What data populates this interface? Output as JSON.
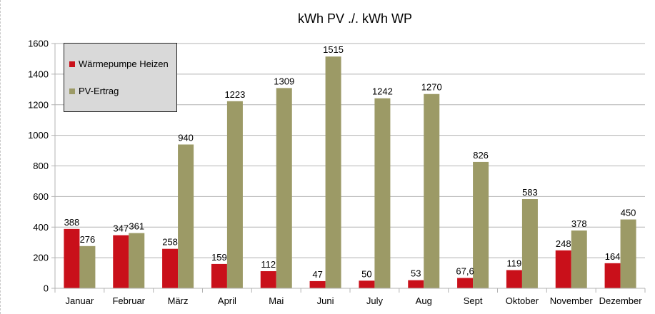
{
  "chart_data": {
    "type": "bar",
    "title": "kWh PV ./. kWh WP",
    "xlabel": "",
    "ylabel": "",
    "ylim": [
      0,
      1600
    ],
    "yticks": [
      0,
      200,
      400,
      600,
      800,
      1000,
      1200,
      1400,
      1600
    ],
    "grid": true,
    "legend_position": "top-left",
    "categories": [
      "Januar",
      "Februar",
      "März",
      "April",
      "Mai",
      "Juni",
      "July",
      "Aug",
      "Sept",
      "Oktober",
      "November",
      "Dezember"
    ],
    "series": [
      {
        "name": "Wärmepumpe Heizen",
        "color": "#c9101a",
        "values": [
          388,
          347,
          258,
          159,
          112,
          47,
          50,
          53,
          67.6,
          119,
          248,
          164
        ],
        "labels": [
          "388",
          "347",
          "258",
          "159",
          "112",
          "47",
          "50",
          "53",
          "67,6",
          "119",
          "248",
          "164"
        ]
      },
      {
        "name": "PV-Ertrag",
        "color": "#9c9a66",
        "values": [
          276,
          361,
          940,
          1223,
          1309,
          1515,
          1242,
          1270,
          826,
          583,
          378,
          450
        ],
        "labels": [
          "276",
          "361",
          "940",
          "1223",
          "1309",
          "1515",
          "1242",
          "1270",
          "826",
          "583",
          "378",
          "450"
        ]
      }
    ]
  }
}
